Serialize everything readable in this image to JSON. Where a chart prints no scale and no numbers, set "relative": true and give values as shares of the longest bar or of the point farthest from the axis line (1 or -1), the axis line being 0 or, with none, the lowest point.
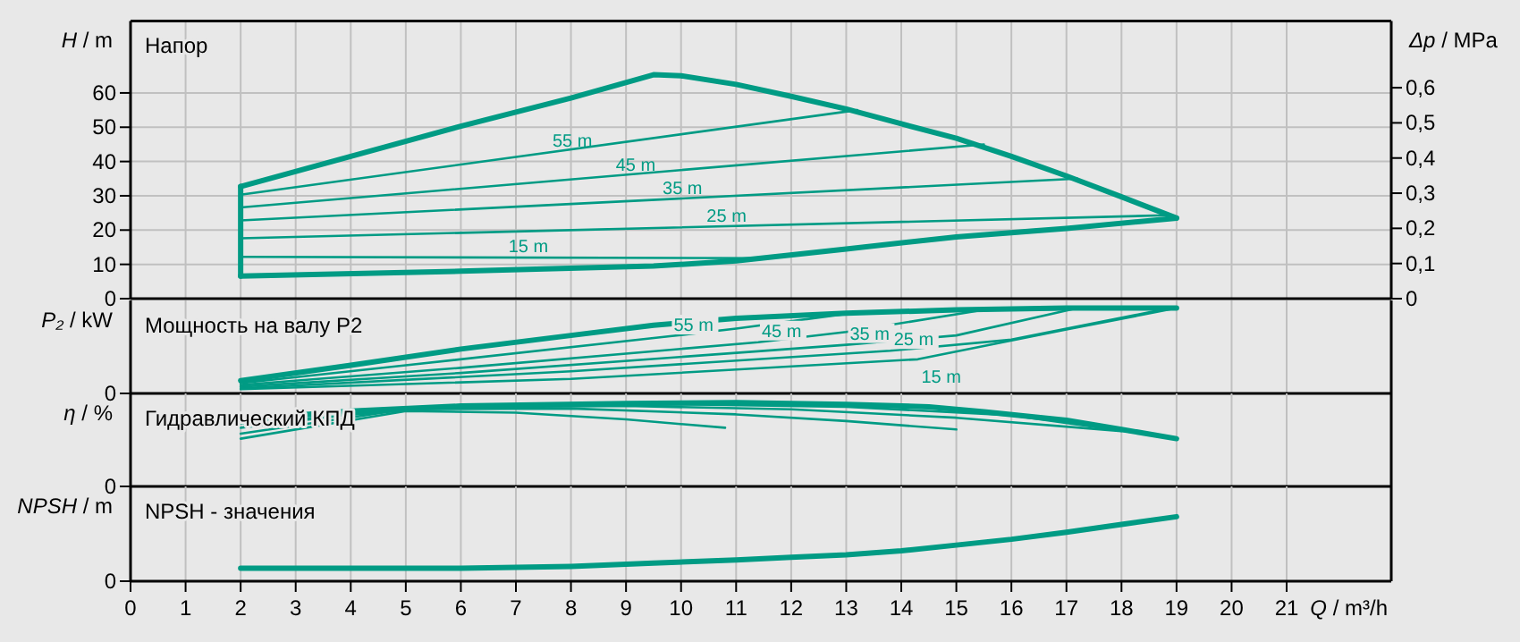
{
  "chart_data": [
    {
      "type": "line",
      "title": "Напор",
      "ylabel": "H / m",
      "y2label": "Δp / MPa",
      "xlim": [
        0,
        22.9
      ],
      "xticks": [
        0,
        1,
        2,
        3,
        4,
        5,
        6,
        7,
        8,
        9,
        10,
        11,
        12,
        13,
        14,
        15,
        16,
        17,
        18,
        19,
        20,
        21
      ],
      "ylim": [
        0,
        81
      ],
      "yticks": [
        0,
        10,
        20,
        30,
        40,
        50,
        60
      ],
      "y2lim": [
        0,
        0.79
      ],
      "y2ticks": [
        0,
        {
          "value": 0.1,
          "label": "0,1"
        },
        {
          "value": 0.2,
          "label": "0,2"
        },
        {
          "value": 0.3,
          "label": "0,3"
        },
        {
          "value": 0.4,
          "label": "0,4"
        },
        {
          "value": 0.5,
          "label": "0,5"
        },
        {
          "value": 0.6,
          "label": "0,6"
        }
      ],
      "grid": true,
      "tick_labels": "y",
      "series": [
        {
          "color": "#009b84",
          "x": [
            2,
            4,
            6,
            8,
            9.5,
            10,
            11,
            12,
            13,
            14,
            15,
            16,
            17,
            18,
            19
          ],
          "values": [
            32.7,
            41.5,
            50.3,
            58.5,
            65.3,
            65,
            62.5,
            59,
            55.3,
            51,
            46.8,
            41.5,
            35.8,
            29.7,
            23.5
          ]
        },
        {
          "color": "#009b84",
          "x": [
            2,
            6,
            9.5,
            11,
            13,
            15,
            17,
            19
          ],
          "values": [
            6.6,
            8,
            9.5,
            11,
            14.5,
            18,
            20.5,
            23.5
          ]
        },
        {
          "name": "55 m",
          "color": "#009b84",
          "x": [
            2,
            13.2
          ],
          "values": [
            30.3,
            55
          ]
        },
        {
          "name": "45 m",
          "color": "#009b84",
          "x": [
            2,
            15.5
          ],
          "values": [
            26.6,
            45
          ]
        },
        {
          "name": "35 m",
          "color": "#009b84",
          "x": [
            2,
            17.2
          ],
          "values": [
            22.8,
            35
          ]
        },
        {
          "name": "25 m",
          "color": "#009b84",
          "x": [
            2,
            18.8
          ],
          "values": [
            17.6,
            24.3
          ]
        },
        {
          "name": "15 m",
          "color": "#009b84",
          "x": [
            2,
            11.6
          ],
          "values": [
            12.2,
            11.8
          ]
        }
      ]
    },
    {
      "type": "line",
      "title": "Мощность на валу P2",
      "ylabel": "P₂ / kW",
      "xlim": [
        0,
        22.9
      ],
      "xticks": [
        0,
        1,
        2,
        3,
        4,
        5,
        6,
        7,
        8,
        9,
        10,
        11,
        12,
        13,
        14,
        15,
        16,
        17,
        18,
        19,
        20,
        21
      ],
      "relative": true,
      "grid": "x",
      "tick_labels": "y",
      "annotations": [
        "0"
      ],
      "series": [
        {
          "color": "#009b84",
          "x": [
            2,
            4,
            6,
            8,
            9.5,
            11,
            13,
            15,
            17,
            19
          ],
          "values": [
            0.15,
            0.33,
            0.52,
            0.68,
            0.8,
            0.88,
            0.94,
            0.98,
            1.0,
            1.0
          ]
        },
        {
          "name": "55 m",
          "color": "#009b84",
          "x": [
            2,
            5,
            9.8,
            11,
            13.2
          ],
          "values": [
            0.12,
            0.33,
            0.67,
            0.76,
            0.95
          ]
        },
        {
          "name": "45 m",
          "color": "#009b84",
          "x": [
            2,
            6,
            11.4,
            13,
            15.5
          ],
          "values": [
            0.1,
            0.3,
            0.6,
            0.72,
            0.98
          ]
        },
        {
          "name": "35 m",
          "color": "#009b84",
          "x": [
            2,
            6,
            13,
            15,
            17.2
          ],
          "values": [
            0.08,
            0.24,
            0.57,
            0.68,
            1.0
          ]
        },
        {
          "name": "25 m",
          "color": "#009b84",
          "x": [
            2,
            8,
            13.8,
            16,
            18.8
          ],
          "values": [
            0.06,
            0.26,
            0.5,
            0.63,
            0.99
          ]
        },
        {
          "name": "15 m",
          "color": "#009b84",
          "x": [
            2,
            8,
            14.3,
            17,
            19
          ],
          "values": [
            0.05,
            0.17,
            0.4,
            0.75,
            1.0
          ]
        }
      ]
    },
    {
      "type": "line",
      "title": "Гидравлический КПД",
      "ylabel": "η / %",
      "xlim": [
        0,
        22.9
      ],
      "xticks": [
        0,
        1,
        2,
        3,
        4,
        5,
        6,
        7,
        8,
        9,
        10,
        11,
        12,
        13,
        14,
        15,
        16,
        17,
        18,
        19,
        20,
        21
      ],
      "relative": true,
      "grid": "x",
      "tick_labels": "y",
      "annotations": [
        "0"
      ],
      "series": [
        {
          "color": "#009b84",
          "x": [
            2,
            4,
            6,
            9,
            11,
            13,
            14.5,
            15.5,
            17,
            18,
            19
          ],
          "values": [
            0.8,
            0.9,
            0.96,
            0.99,
            1.0,
            0.98,
            0.95,
            0.89,
            0.79,
            0.68,
            0.57
          ]
        },
        {
          "color": "#009b84",
          "x": [
            2,
            5,
            7,
            9,
            10.8
          ],
          "values": [
            0.57,
            0.9,
            0.88,
            0.8,
            0.7
          ]
        },
        {
          "color": "#009b84",
          "x": [
            2,
            5,
            8,
            11,
            13,
            15
          ],
          "values": [
            0.63,
            0.92,
            0.93,
            0.86,
            0.78,
            0.68
          ]
        },
        {
          "color": "#009b84",
          "x": [
            2,
            5,
            9,
            12,
            15,
            18
          ],
          "values": [
            0.7,
            0.94,
            0.96,
            0.92,
            0.82,
            0.66
          ]
        },
        {
          "color": "#009b84",
          "x": [
            2,
            6,
            10,
            13,
            16,
            18.5
          ],
          "values": [
            0.75,
            0.96,
            0.98,
            0.95,
            0.85,
            0.62
          ]
        }
      ]
    },
    {
      "type": "line",
      "title": "NPSH - значения",
      "ylabel": "NPSH / m",
      "xlabel": "Q / m³/h",
      "xlim": [
        0,
        22.9
      ],
      "xticks": [
        0,
        1,
        2,
        3,
        4,
        5,
        6,
        7,
        8,
        9,
        10,
        11,
        12,
        13,
        14,
        15,
        16,
        17,
        18,
        19,
        20,
        21
      ],
      "relative": true,
      "grid": "x",
      "annotations": [
        "0"
      ],
      "series": [
        {
          "color": "#009b84",
          "x": [
            2,
            6,
            8,
            9.5,
            11,
            12,
            13,
            14,
            15,
            16,
            17,
            18,
            19
          ],
          "values": [
            0.2,
            0.2,
            0.23,
            0.28,
            0.33,
            0.37,
            0.41,
            0.47,
            0.56,
            0.65,
            0.76,
            0.88,
            1.0
          ]
        }
      ]
    }
  ]
}
